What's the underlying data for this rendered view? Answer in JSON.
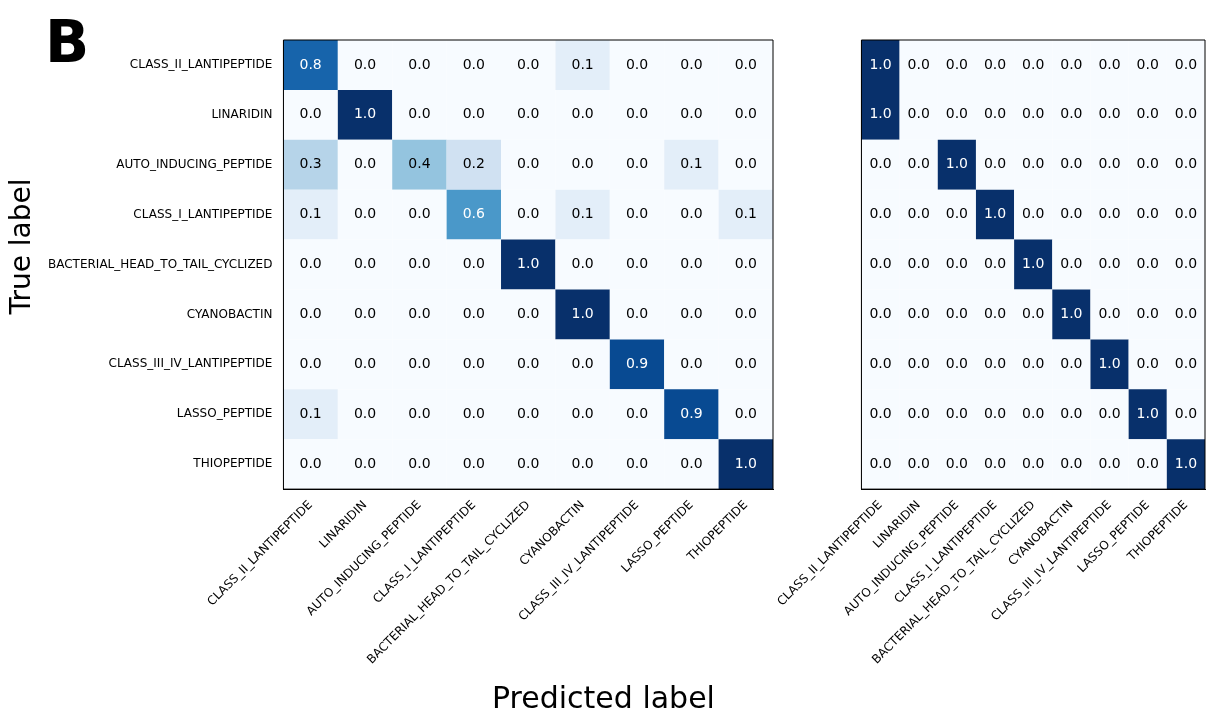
{
  "chart_data": [
    {
      "type": "heatmap",
      "ylabel": "True label",
      "xlabel": "Predicted label",
      "annotations": [
        "B"
      ],
      "categories": [
        "CLASS_II_LANTIPEPTIDE",
        "LINARIDIN",
        "AUTO_INDUCING_PEPTIDE",
        "CLASS_I_LANTIPEPTIDE",
        "BACTERIAL_HEAD_TO_TAIL_CYCLIZED",
        "CYANOBACTIN",
        "CLASS_III_IV_LANTIPEPTIDE",
        "LASSO_PEPTIDE",
        "THIOPEPTIDE"
      ],
      "y_categories": [
        "CLASS_II_LANTIPEPTIDE",
        "LINARIDIN",
        "AUTO_INDUCING_PEPTIDE",
        "CLASS_I_LANTIPEPTIDE",
        "BACTERIAL_HEAD_TO_TAIL_CYCLIZED",
        "CYANOBACTIN",
        "CLASS_III_IV_LANTIPEPTIDE",
        "LASSO_PEPTIDE",
        "THIOPEPTIDE"
      ],
      "cells": [
        [
          0.8,
          0.0,
          0.0,
          0.0,
          0.0,
          0.1,
          0.0,
          0.0,
          0.0
        ],
        [
          0.0,
          1.0,
          0.0,
          0.0,
          0.0,
          0.0,
          0.0,
          0.0,
          0.0
        ],
        [
          0.3,
          0.0,
          0.4,
          0.2,
          0.0,
          0.0,
          0.0,
          0.1,
          0.0
        ],
        [
          0.1,
          0.0,
          0.0,
          0.6,
          0.0,
          0.1,
          0.0,
          0.0,
          0.1
        ],
        [
          0.0,
          0.0,
          0.0,
          0.0,
          1.0,
          0.0,
          0.0,
          0.0,
          0.0
        ],
        [
          0.0,
          0.0,
          0.0,
          0.0,
          0.0,
          1.0,
          0.0,
          0.0,
          0.0
        ],
        [
          0.0,
          0.0,
          0.0,
          0.0,
          0.0,
          0.0,
          0.9,
          0.0,
          0.0
        ],
        [
          0.1,
          0.0,
          0.0,
          0.0,
          0.0,
          0.0,
          0.0,
          0.9,
          0.0
        ],
        [
          0.0,
          0.0,
          0.0,
          0.0,
          0.0,
          0.0,
          0.0,
          0.0,
          1.0
        ]
      ],
      "cell_labels": [
        [
          "0.8",
          "0.0",
          "0.0",
          "0.0",
          "0.0",
          "0.1",
          "0.0",
          "0.0",
          "0.0"
        ],
        [
          "0.0",
          "1.0",
          "0.0",
          "0.0",
          "0.0",
          "0.0",
          "0.0",
          "0.0",
          "0.0"
        ],
        [
          "0.3",
          "0.0",
          "0.4",
          "0.2",
          "0.0",
          "0.0",
          "0.0",
          "0.1",
          "0.0"
        ],
        [
          "0.1",
          "0.0",
          "0.0",
          "0.6",
          "0.0",
          "0.1",
          "0.0",
          "0.0",
          "0.1"
        ],
        [
          "0.0",
          "0.0",
          "0.0",
          "0.0",
          "1.0",
          "0.0",
          "0.0",
          "0.0",
          "0.0"
        ],
        [
          "0.0",
          "0.0",
          "0.0",
          "0.0",
          "0.0",
          "1.0",
          "0.0",
          "0.0",
          "0.0"
        ],
        [
          "0.0",
          "0.0",
          "0.0",
          "0.0",
          "0.0",
          "0.0",
          "0.9",
          "0.0",
          "0.0"
        ],
        [
          "0.1",
          "0.0",
          "0.0",
          "0.0",
          "0.0",
          "0.0",
          "0.0",
          "0.9",
          "0.0"
        ],
        [
          "0.0",
          "0.0",
          "0.0",
          "0.0",
          "0.0",
          "0.0",
          "0.0",
          "0.0",
          "1.0"
        ]
      ]
    },
    {
      "type": "heatmap",
      "tick_labels": "x",
      "categories": [
        "CLASS_II_LANTIPEPTIDE",
        "LINARIDIN",
        "AUTO_INDUCING_PEPTIDE",
        "CLASS_I_LANTIPEPTIDE",
        "BACTERIAL_HEAD_TO_TAIL_CYCLIZED",
        "CYANOBACTIN",
        "CLASS_III_IV_LANTIPEPTIDE",
        "LASSO_PEPTIDE",
        "THIOPEPTIDE"
      ],
      "y_categories": [
        null,
        null,
        null,
        null,
        null,
        null,
        null,
        null,
        null
      ],
      "cells": [
        [
          1.0,
          0.0,
          0.0,
          0.0,
          0.0,
          0.0,
          0.0,
          0.0,
          0.0
        ],
        [
          1.0,
          0.0,
          0.0,
          0.0,
          0.0,
          0.0,
          0.0,
          0.0,
          0.0
        ],
        [
          0.0,
          0.0,
          1.0,
          0.0,
          0.0,
          0.0,
          0.0,
          0.0,
          0.0
        ],
        [
          0.0,
          0.0,
          0.0,
          1.0,
          0.0,
          0.0,
          0.0,
          0.0,
          0.0
        ],
        [
          0.0,
          0.0,
          0.0,
          0.0,
          1.0,
          0.0,
          0.0,
          0.0,
          0.0
        ],
        [
          0.0,
          0.0,
          0.0,
          0.0,
          0.0,
          1.0,
          0.0,
          0.0,
          0.0
        ],
        [
          0.0,
          0.0,
          0.0,
          0.0,
          0.0,
          0.0,
          1.0,
          0.0,
          0.0
        ],
        [
          0.0,
          0.0,
          0.0,
          0.0,
          0.0,
          0.0,
          0.0,
          1.0,
          0.0
        ],
        [
          0.0,
          0.0,
          0.0,
          0.0,
          0.0,
          0.0,
          0.0,
          0.0,
          1.0
        ]
      ],
      "cell_labels": [
        [
          "1.0",
          "0.0",
          "0.0",
          "0.0",
          "0.0",
          "0.0",
          "0.0",
          "0.0",
          "0.0"
        ],
        [
          "1.0",
          "0.0",
          "0.0",
          "0.0",
          "0.0",
          "0.0",
          "0.0",
          "0.0",
          "0.0"
        ],
        [
          "0.0",
          "0.0",
          "1.0",
          "0.0",
          "0.0",
          "0.0",
          "0.0",
          "0.0",
          "0.0"
        ],
        [
          "0.0",
          "0.0",
          "0.0",
          "1.0",
          "0.0",
          "0.0",
          "0.0",
          "0.0",
          "0.0"
        ],
        [
          "0.0",
          "0.0",
          "0.0",
          "0.0",
          "1.0",
          "0.0",
          "0.0",
          "0.0",
          "0.0"
        ],
        [
          "0.0",
          "0.0",
          "0.0",
          "0.0",
          "0.0",
          "1.0",
          "0.0",
          "0.0",
          "0.0"
        ],
        [
          "0.0",
          "0.0",
          "0.0",
          "0.0",
          "0.0",
          "0.0",
          "1.0",
          "0.0",
          "0.0"
        ],
        [
          "0.0",
          "0.0",
          "0.0",
          "0.0",
          "0.0",
          "0.0",
          "0.0",
          "1.0",
          "0.0"
        ],
        [
          "0.0",
          "0.0",
          "0.0",
          "0.0",
          "0.0",
          "0.0",
          "0.0",
          "0.0",
          "1.0"
        ]
      ]
    }
  ]
}
